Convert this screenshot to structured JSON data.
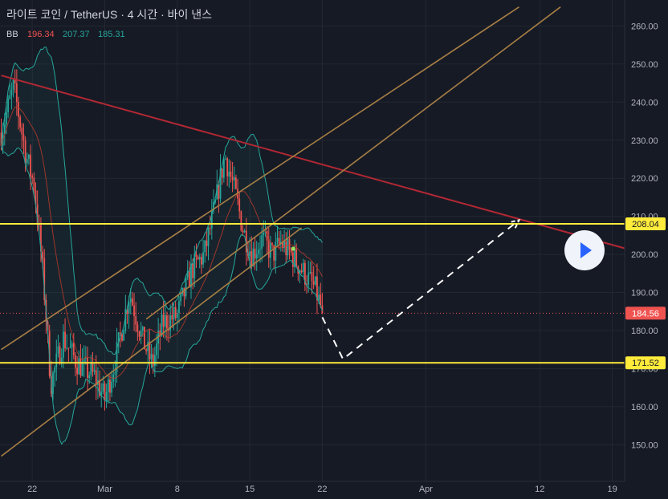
{
  "header": {
    "symbol_title": "라이트 코인 / TetherUS · 4 시간 · 바이 낸스",
    "indicator_name": "BB",
    "indicator_values": [
      "196.34",
      "207.37",
      "185.31"
    ],
    "indicator_colors": [
      "#f05350",
      "#26a69a",
      "#26a69a"
    ]
  },
  "chart_data": {
    "type": "candlestick",
    "ylim": [
      143,
      265
    ],
    "y_ticks": [
      150,
      160,
      170,
      180,
      190,
      200,
      210,
      220,
      230,
      240,
      250,
      260
    ],
    "x_ticks": [
      "22",
      "Mar",
      "8",
      "15",
      "22",
      "Apr",
      "12",
      "19"
    ],
    "price_labels": [
      {
        "value": 208.04,
        "text": "208.04",
        "kind": "level"
      },
      {
        "value": 184.56,
        "text": "184.56",
        "kind": "last"
      },
      {
        "value": 171.52,
        "text": "171.52",
        "kind": "level"
      }
    ],
    "horizontal_levels": [
      208.04,
      171.52
    ],
    "last_price": 184.56,
    "bollinger": {
      "basis": 196.34,
      "upper": 207.37,
      "lower": 185.31
    },
    "trendlines": [
      {
        "name": "descending-resistance",
        "from": {
          "x": "Feb 19",
          "y": 247
        },
        "to": {
          "x": "Apr 21",
          "y": 201
        }
      },
      {
        "name": "channel-lower",
        "from": {
          "x": "Feb 19",
          "y": 147
        },
        "to": {
          "x": "Mar 20",
          "y": 207
        }
      },
      {
        "name": "channel-middle",
        "from": {
          "x": "Feb 19",
          "y": 175
        },
        "to": {
          "x": "Apr 10",
          "y": 265
        }
      },
      {
        "name": "channel-upper",
        "from": {
          "x": "Mar 5",
          "y": 183
        },
        "to": {
          "x": "Apr 14",
          "y": 265
        }
      }
    ],
    "projection": [
      {
        "x": "Mar 22",
        "y": 183.5
      },
      {
        "x": "Mar 24",
        "y": 172.5
      },
      {
        "x": "Apr 10",
        "y": 209
      }
    ],
    "colors": {
      "up": "#26a69a",
      "down": "#ef5350",
      "levels": "#ffeb3b",
      "resistance": "#b22833",
      "channel": "#a87f45",
      "bb": "#26a69a",
      "basis": "#c0392b"
    }
  }
}
